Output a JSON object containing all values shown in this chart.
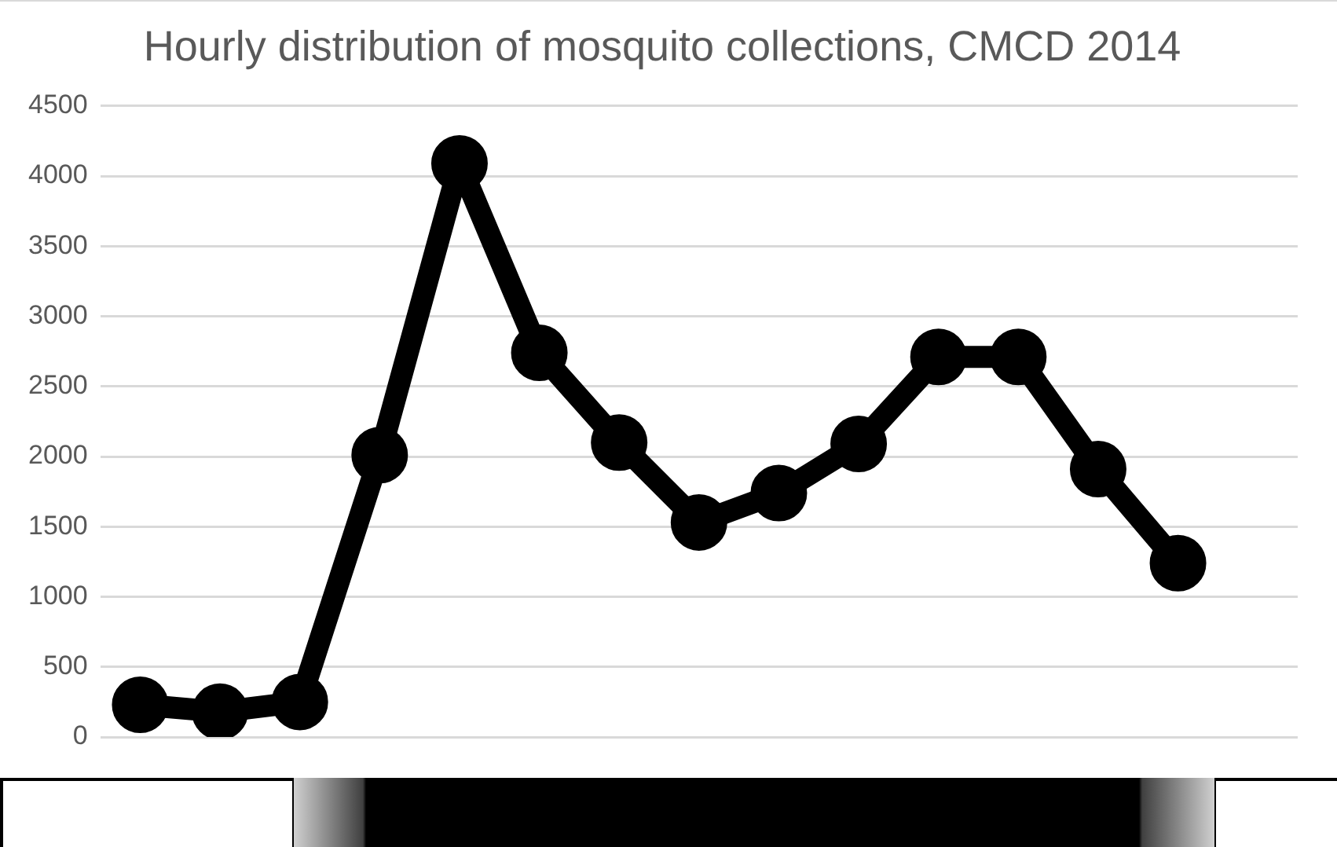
{
  "chart_data": {
    "type": "line",
    "title": "Hourly distribution of mosquito collections, CMCD 2014",
    "categories": [
      null,
      null,
      null,
      null,
      null,
      null,
      null,
      null,
      null,
      null,
      null,
      null,
      null,
      null,
      null
    ],
    "series": [
      {
        "color": "#000000",
        "values": [
          230,
          180,
          250,
          2010,
          4090,
          2740,
          2100,
          1530,
          1740,
          2090,
          2710,
          2710,
          1910,
          1240,
          null
        ]
      }
    ],
    "ylim": [
      0,
      4500
    ],
    "yticks": [
      0,
      500,
      1000,
      1500,
      2000,
      2500,
      3000,
      3500,
      4000,
      4500
    ],
    "grid": "y",
    "legend": false,
    "marker": "circle",
    "line_style": "solid",
    "tick_labels": "y"
  }
}
